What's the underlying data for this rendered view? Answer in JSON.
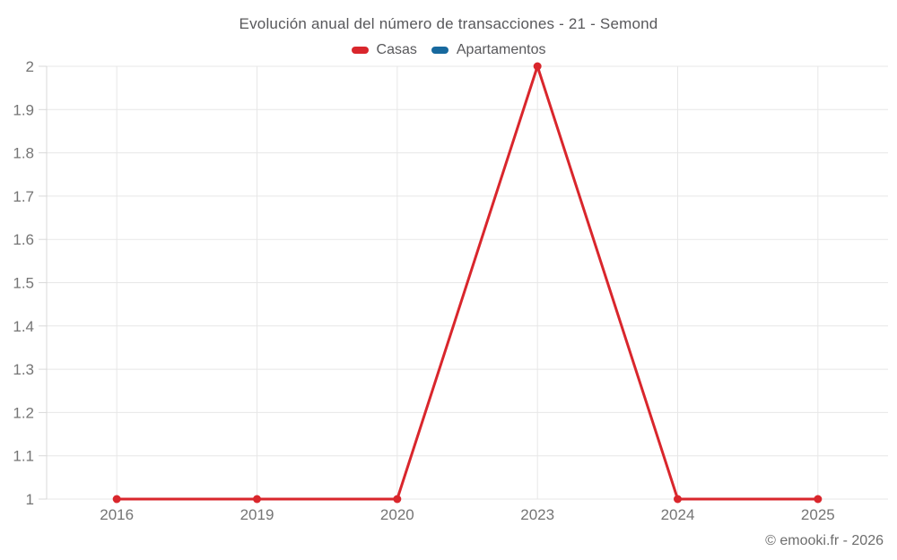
{
  "chart_data": {
    "type": "line",
    "title": "Evolución anual del número de transacciones - 21 - Semond",
    "categories": [
      "2016",
      "2019",
      "2020",
      "2023",
      "2024",
      "2025"
    ],
    "series": [
      {
        "name": "Casas",
        "color": "#d9262c",
        "values": [
          1,
          1,
          1,
          2,
          1,
          1
        ]
      },
      {
        "name": "Apartamentos",
        "color": "#17699e",
        "values": []
      }
    ],
    "ylim": [
      1,
      2
    ],
    "yticks": [
      1,
      1.1,
      1.2,
      1.3,
      1.4,
      1.5,
      1.6,
      1.7,
      1.8,
      1.9,
      2
    ],
    "ytick_labels": [
      "1",
      "1.1",
      "1.2",
      "1.3",
      "1.4",
      "1.5",
      "1.6",
      "1.7",
      "1.8",
      "1.9",
      "2"
    ],
    "xlabel": "",
    "ylabel": "",
    "grid": true,
    "legend_position": "top"
  },
  "colors": {
    "grid_line": "#e7e7e7",
    "axis_line": "#d9d9d9",
    "tick_text": "#757575",
    "title_text": "#58585b",
    "footer_text": "#6d6d6d",
    "background": "#ffffff"
  },
  "footer": {
    "credit": "© emooki.fr - 2026"
  }
}
